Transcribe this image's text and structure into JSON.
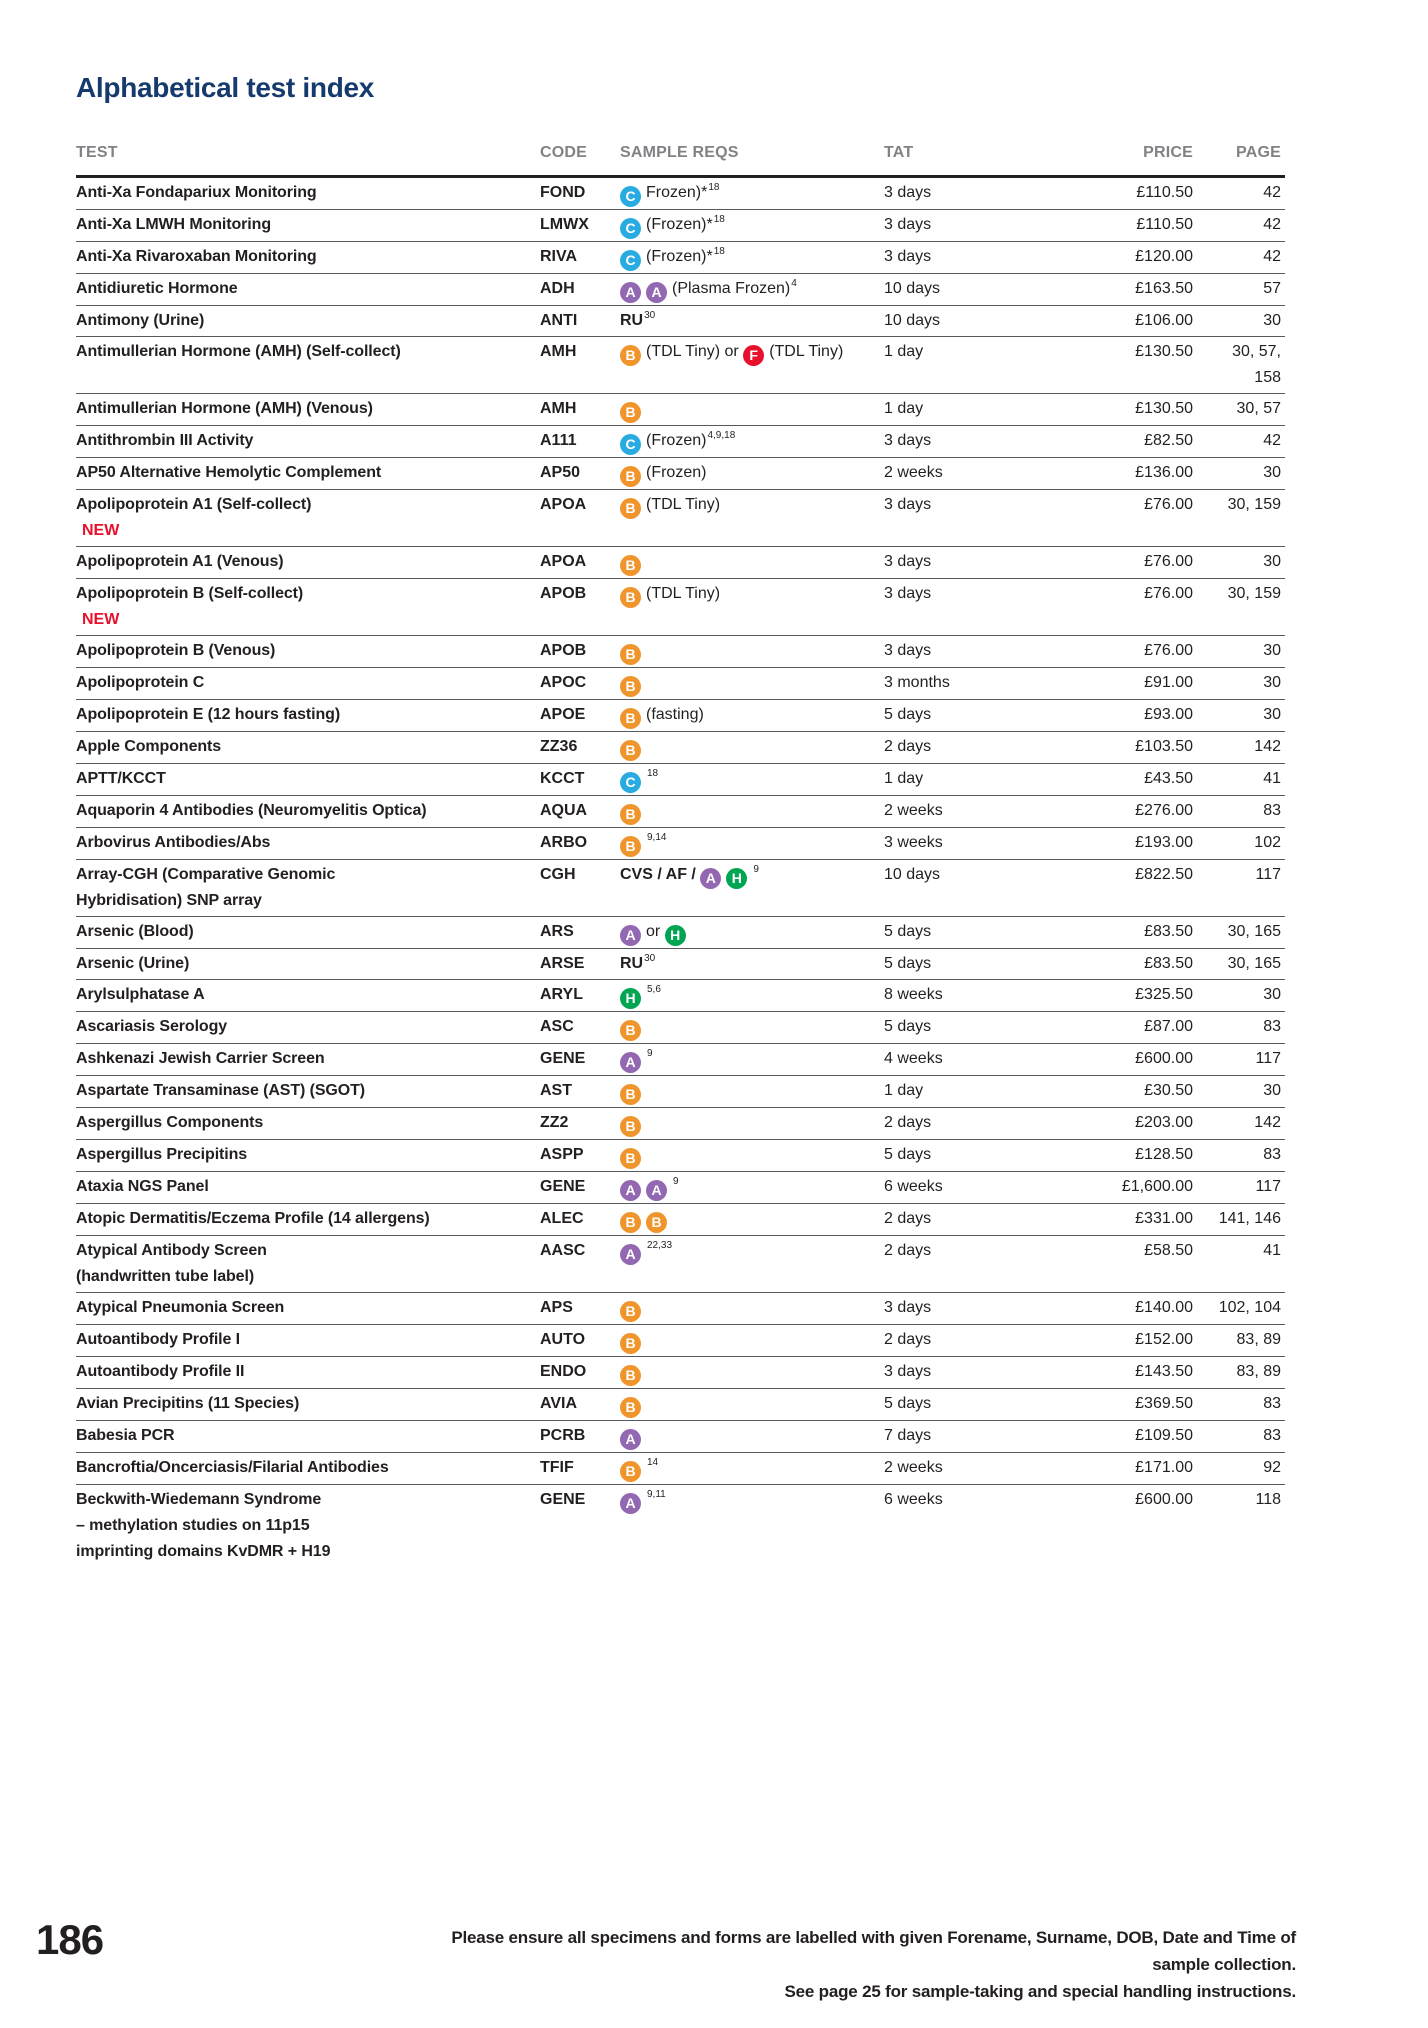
{
  "page": {
    "title": "Alphabetical test index",
    "page_number": "186",
    "footer_line1": "Please ensure all specimens and forms are labelled with given Forename, Surname, DOB, Date and Time of sample collection.",
    "footer_line2": "See page 25 for sample-taking and special handling instructions."
  },
  "table": {
    "headers": {
      "test": "TEST",
      "code": "CODE",
      "reqs": "SAMPLE REQS",
      "tat": "TAT",
      "price": "PRICE",
      "page": "PAGE"
    },
    "new_label": "NEW",
    "icon_colors": {
      "A": "#9368b2",
      "B": "#f0942c",
      "C": "#29abe2",
      "F": "#e8112d",
      "H": "#00a551"
    },
    "rows": [
      {
        "test": "Anti-Xa Fondapariux Monitoring",
        "code": "FOND",
        "reqs": [
          {
            "t": "icon",
            "v": "C"
          },
          {
            "t": "text",
            "v": "Frozen)*"
          },
          {
            "t": "sup",
            "v": "18"
          }
        ],
        "tat": "3 days",
        "price": "£110.50",
        "page": "42"
      },
      {
        "test": "Anti-Xa LMWH Monitoring",
        "code": "LMWX",
        "reqs": [
          {
            "t": "icon",
            "v": "C"
          },
          {
            "t": "text",
            "v": "(Frozen)*"
          },
          {
            "t": "sup",
            "v": "18"
          }
        ],
        "tat": "3 days",
        "price": "£110.50",
        "page": "42"
      },
      {
        "test": "Anti-Xa Rivaroxaban Monitoring",
        "code": "RIVA",
        "reqs": [
          {
            "t": "icon",
            "v": "C"
          },
          {
            "t": "text",
            "v": "(Frozen)*"
          },
          {
            "t": "sup",
            "v": "18"
          }
        ],
        "tat": "3 days",
        "price": "£120.00",
        "page": "42"
      },
      {
        "test": "Antidiuretic Hormone",
        "code": "ADH",
        "reqs": [
          {
            "t": "icon",
            "v": "A"
          },
          {
            "t": "icon",
            "v": "A"
          },
          {
            "t": "text",
            "v": "(Plasma Frozen)"
          },
          {
            "t": "sup",
            "v": "4"
          }
        ],
        "tat": "10 days",
        "price": "£163.50",
        "page": "57"
      },
      {
        "test": "Antimony (Urine)",
        "code": "ANTI",
        "reqs": [
          {
            "t": "bold",
            "v": "RU"
          },
          {
            "t": "sup",
            "v": "30"
          }
        ],
        "tat": "10 days",
        "price": "£106.00",
        "page": "30"
      },
      {
        "test": "Antimullerian Hormone (AMH) (Self-collect)",
        "code": "AMH",
        "reqs": [
          {
            "t": "icon",
            "v": "B"
          },
          {
            "t": "text",
            "v": "(TDL Tiny) or "
          },
          {
            "t": "icon",
            "v": "F"
          },
          {
            "t": "text",
            "v": "(TDL Tiny)"
          }
        ],
        "tat": "1 day",
        "price": "£130.50",
        "page": "30, 57,\n158"
      },
      {
        "test": "Antimullerian Hormone (AMH) (Venous)",
        "code": "AMH",
        "reqs": [
          {
            "t": "icon",
            "v": "B"
          }
        ],
        "tat": "1 day",
        "price": "£130.50",
        "page": "30, 57"
      },
      {
        "test": "Antithrombin III Activity",
        "code": "A111",
        "reqs": [
          {
            "t": "icon",
            "v": "C"
          },
          {
            "t": "text",
            "v": "(Frozen)"
          },
          {
            "t": "sup",
            "v": "4,9,18"
          }
        ],
        "tat": "3 days",
        "price": "£82.50",
        "page": "42"
      },
      {
        "test": "AP50 Alternative Hemolytic Complement",
        "code": "AP50",
        "reqs": [
          {
            "t": "icon",
            "v": "B"
          },
          {
            "t": "text",
            "v": "(Frozen)"
          }
        ],
        "tat": "2 weeks",
        "price": "£136.00",
        "page": "30"
      },
      {
        "test": "Apolipoprotein A1 (Self-collect)",
        "is_new": true,
        "code": "APOA",
        "reqs": [
          {
            "t": "icon",
            "v": "B"
          },
          {
            "t": "text",
            "v": "(TDL Tiny)"
          }
        ],
        "tat": "3 days",
        "price": "£76.00",
        "page": "30, 159"
      },
      {
        "test": "Apolipoprotein A1 (Venous)",
        "code": "APOA",
        "reqs": [
          {
            "t": "icon",
            "v": "B"
          }
        ],
        "tat": "3 days",
        "price": "£76.00",
        "page": "30"
      },
      {
        "test": "Apolipoprotein B (Self-collect)",
        "is_new": true,
        "code": "APOB",
        "reqs": [
          {
            "t": "icon",
            "v": "B"
          },
          {
            "t": "text",
            "v": "(TDL Tiny)"
          }
        ],
        "tat": "3 days",
        "price": "£76.00",
        "page": "30, 159"
      },
      {
        "test": "Apolipoprotein B (Venous)",
        "code": "APOB",
        "reqs": [
          {
            "t": "icon",
            "v": "B"
          }
        ],
        "tat": "3 days",
        "price": "£76.00",
        "page": "30"
      },
      {
        "test": "Apolipoprotein C",
        "code": "APOC",
        "reqs": [
          {
            "t": "icon",
            "v": "B"
          }
        ],
        "tat": "3 months",
        "price": "£91.00",
        "page": "30"
      },
      {
        "test": "Apolipoprotein E (12 hours fasting)",
        "code": "APOE",
        "reqs": [
          {
            "t": "icon",
            "v": "B"
          },
          {
            "t": "text",
            "v": "(fasting)"
          }
        ],
        "tat": "5 days",
        "price": "£93.00",
        "page": "30"
      },
      {
        "test": "Apple Components",
        "code": "ZZ36",
        "reqs": [
          {
            "t": "icon",
            "v": "B"
          }
        ],
        "tat": "2 days",
        "price": "£103.50",
        "page": "142"
      },
      {
        "test": "APTT/KCCT",
        "code": "KCCT",
        "reqs": [
          {
            "t": "icon",
            "v": "C"
          },
          {
            "t": "sup",
            "v": "18"
          }
        ],
        "tat": "1 day",
        "price": "£43.50",
        "page": "41"
      },
      {
        "test": "Aquaporin 4 Antibodies (Neuromyelitis Optica)",
        "code": "AQUA",
        "reqs": [
          {
            "t": "icon",
            "v": "B"
          }
        ],
        "tat": "2 weeks",
        "price": "£276.00",
        "page": "83"
      },
      {
        "test": "Arbovirus Antibodies/Abs",
        "code": "ARBO",
        "reqs": [
          {
            "t": "icon",
            "v": "B"
          },
          {
            "t": "sup",
            "v": "9,14"
          }
        ],
        "tat": "3 weeks",
        "price": "£193.00",
        "page": "102"
      },
      {
        "test": "Array-CGH (Comparative Genomic\nHybridisation) SNP array",
        "code": "CGH",
        "reqs": [
          {
            "t": "bold",
            "v": "CVS / AF / "
          },
          {
            "t": "icon",
            "v": "A"
          },
          {
            "t": "icon",
            "v": "H"
          },
          {
            "t": "sup",
            "v": "9"
          }
        ],
        "tat": "10 days",
        "price": "£822.50",
        "page": "117"
      },
      {
        "test": "Arsenic (Blood)",
        "code": "ARS",
        "reqs": [
          {
            "t": "icon",
            "v": "A"
          },
          {
            "t": "text",
            "v": "or "
          },
          {
            "t": "icon",
            "v": "H"
          }
        ],
        "tat": "5 days",
        "price": "£83.50",
        "page": "30, 165"
      },
      {
        "test": "Arsenic (Urine)",
        "code": "ARSE",
        "reqs": [
          {
            "t": "bold",
            "v": "RU"
          },
          {
            "t": "sup",
            "v": "30"
          }
        ],
        "tat": "5 days",
        "price": "£83.50",
        "page": "30, 165"
      },
      {
        "test": "Arylsulphatase A",
        "code": "ARYL",
        "reqs": [
          {
            "t": "icon",
            "v": "H"
          },
          {
            "t": "sup",
            "v": "5,6"
          }
        ],
        "tat": "8 weeks",
        "price": "£325.50",
        "page": "30"
      },
      {
        "test": "Ascariasis Serology",
        "code": "ASC",
        "reqs": [
          {
            "t": "icon",
            "v": "B"
          }
        ],
        "tat": "5 days",
        "price": "£87.00",
        "page": "83"
      },
      {
        "test": "Ashkenazi Jewish Carrier Screen",
        "code": "GENE",
        "reqs": [
          {
            "t": "icon",
            "v": "A"
          },
          {
            "t": "sup",
            "v": "9"
          }
        ],
        "tat": "4 weeks",
        "price": "£600.00",
        "page": "117"
      },
      {
        "test": "Aspartate Transaminase (AST) (SGOT)",
        "code": "AST",
        "reqs": [
          {
            "t": "icon",
            "v": "B"
          }
        ],
        "tat": "1 day",
        "price": "£30.50",
        "page": "30"
      },
      {
        "test": "Aspergillus Components",
        "code": "ZZ2",
        "reqs": [
          {
            "t": "icon",
            "v": "B"
          }
        ],
        "tat": "2 days",
        "price": "£203.00",
        "page": "142"
      },
      {
        "test": "Aspergillus Precipitins",
        "code": "ASPP",
        "reqs": [
          {
            "t": "icon",
            "v": "B"
          }
        ],
        "tat": "5 days",
        "price": "£128.50",
        "page": "83"
      },
      {
        "test": "Ataxia NGS Panel",
        "code": "GENE",
        "reqs": [
          {
            "t": "icon",
            "v": "A"
          },
          {
            "t": "icon",
            "v": "A"
          },
          {
            "t": "sup",
            "v": "9"
          }
        ],
        "tat": "6 weeks",
        "price": "£1,600.00",
        "page": "117"
      },
      {
        "test": "Atopic Dermatitis/Eczema Profile (14 allergens)",
        "code": "ALEC",
        "reqs": [
          {
            "t": "icon",
            "v": "B"
          },
          {
            "t": "icon",
            "v": "B"
          }
        ],
        "tat": "2 days",
        "price": "£331.00",
        "page": "141, 146"
      },
      {
        "test": "Atypical Antibody Screen\n(handwritten tube label)",
        "code": "AASC",
        "reqs": [
          {
            "t": "icon",
            "v": "A"
          },
          {
            "t": "sup",
            "v": "22,33"
          }
        ],
        "tat": "2 days",
        "price": "£58.50",
        "page": "41"
      },
      {
        "test": "Atypical Pneumonia Screen",
        "code": "APS",
        "reqs": [
          {
            "t": "icon",
            "v": "B"
          }
        ],
        "tat": "3 days",
        "price": "£140.00",
        "page": "102, 104"
      },
      {
        "test": "Autoantibody Profile I",
        "code": "AUTO",
        "reqs": [
          {
            "t": "icon",
            "v": "B"
          }
        ],
        "tat": "2 days",
        "price": "£152.00",
        "page": "83, 89"
      },
      {
        "test": "Autoantibody Profile II",
        "code": "ENDO",
        "reqs": [
          {
            "t": "icon",
            "v": "B"
          }
        ],
        "tat": "3 days",
        "price": "£143.50",
        "page": "83, 89"
      },
      {
        "test": "Avian Precipitins (11 Species)",
        "code": "AVIA",
        "reqs": [
          {
            "t": "icon",
            "v": "B"
          }
        ],
        "tat": "5 days",
        "price": "£369.50",
        "page": "83"
      },
      {
        "test": "Babesia PCR",
        "code": "PCRB",
        "reqs": [
          {
            "t": "icon",
            "v": "A"
          }
        ],
        "tat": "7 days",
        "price": "£109.50",
        "page": "83"
      },
      {
        "test": "Bancroftia/Oncerciasis/Filarial Antibodies",
        "code": "TFIF",
        "reqs": [
          {
            "t": "icon",
            "v": "B"
          },
          {
            "t": "sup",
            "v": "14"
          }
        ],
        "tat": "2 weeks",
        "price": "£171.00",
        "page": "92"
      },
      {
        "test": "Beckwith-Wiedemann Syndrome\n– methylation studies on 11p15\nimprinting domains KvDMR + H19",
        "code": "GENE",
        "reqs": [
          {
            "t": "icon",
            "v": "A"
          },
          {
            "t": "sup",
            "v": "9,11"
          }
        ],
        "tat": "6 weeks",
        "price": "£600.00",
        "page": "118"
      }
    ]
  }
}
